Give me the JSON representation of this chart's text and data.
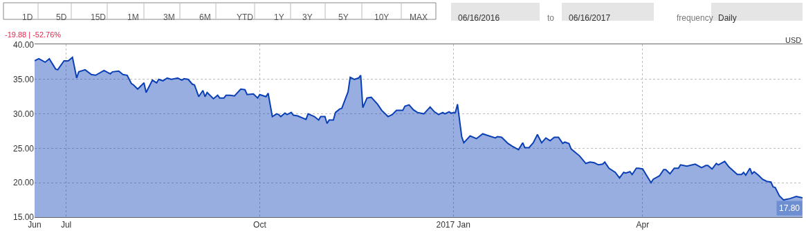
{
  "chart_data": {
    "type": "area",
    "title": "-19.88 | -52.76%",
    "annotations": [
      "1D",
      "5D",
      "15D",
      "1M",
      "3M",
      "6M",
      "YTD",
      "1Y",
      "3Y",
      "5Y",
      "10Y",
      "MAX",
      "06/16/2016",
      "to",
      "06/16/2017",
      "frequency",
      "Daily",
      "USD",
      {
        "text": "17.80",
        "x": "2017-06-16",
        "y": 17.8
      }
    ],
    "x": [
      "2016-06-16",
      "2016-06-18",
      "2016-06-21",
      "2016-06-23",
      "2016-06-26",
      "2016-06-27",
      "2016-06-30",
      "2016-07-02",
      "2016-07-04",
      "2016-07-06",
      "2016-07-07",
      "2016-07-10",
      "2016-07-13",
      "2016-07-15",
      "2016-07-19",
      "2016-07-22",
      "2016-07-23",
      "2016-07-26",
      "2016-07-28",
      "2016-07-30",
      "2016-08-01",
      "2016-08-02",
      "2016-08-04",
      "2016-08-07",
      "2016-08-08",
      "2016-08-11",
      "2016-08-13",
      "2016-08-14",
      "2016-08-16",
      "2016-08-18",
      "2016-08-20",
      "2016-08-23",
      "2016-08-25",
      "2016-08-26",
      "2016-08-28",
      "2016-08-30",
      "2016-08-31",
      "2016-09-02",
      "2016-09-04",
      "2016-09-05",
      "2016-09-06",
      "2016-09-09",
      "2016-09-11",
      "2016-09-12",
      "2016-09-14",
      "2016-09-15",
      "2016-09-17",
      "2016-09-19",
      "2016-09-22",
      "2016-09-24",
      "2016-09-25",
      "2016-09-28",
      "2016-09-30",
      "2016-10-01",
      "2016-10-04",
      "2016-10-05",
      "2016-10-07",
      "2016-10-09",
      "2016-10-10",
      "2016-10-11",
      "2016-10-13",
      "2016-10-14",
      "2016-10-16",
      "2016-10-17",
      "2016-10-19",
      "2016-10-23",
      "2016-10-24",
      "2016-10-27",
      "2016-10-29",
      "2016-10-30",
      "2016-11-01",
      "2016-11-02",
      "2016-11-03",
      "2016-11-05",
      "2016-11-06",
      "2016-11-08",
      "2016-11-09",
      "2016-11-12",
      "2016-11-13",
      "2016-11-15",
      "2016-11-17",
      "2016-11-18",
      "2016-11-19",
      "2016-11-21",
      "2016-11-23",
      "2016-11-26",
      "2016-11-28",
      "2016-12-01",
      "2016-12-03",
      "2016-12-05",
      "2016-12-08",
      "2016-12-09",
      "2016-12-11",
      "2016-12-13",
      "2016-12-15",
      "2016-12-18",
      "2016-12-21",
      "2016-12-23",
      "2016-12-25",
      "2016-12-27",
      "2016-12-28",
      "2016-12-30",
      "2016-12-31",
      "2017-01-02",
      "2017-01-03",
      "2017-01-05",
      "2017-01-06",
      "2017-01-09",
      "2017-01-12",
      "2017-01-15",
      "2017-01-17",
      "2017-01-21",
      "2017-01-22",
      "2017-01-24",
      "2017-01-27",
      "2017-01-29",
      "2017-02-01",
      "2017-02-03",
      "2017-02-04",
      "2017-02-06",
      "2017-02-08",
      "2017-02-10",
      "2017-02-12",
      "2017-02-14",
      "2017-02-16",
      "2017-02-18",
      "2017-02-20",
      "2017-02-22",
      "2017-02-23",
      "2017-02-25",
      "2017-02-26",
      "2017-03-02",
      "2017-03-05",
      "2017-03-07",
      "2017-03-09",
      "2017-03-11",
      "2017-03-13",
      "2017-03-14",
      "2017-03-16",
      "2017-03-19",
      "2017-03-21",
      "2017-03-23",
      "2017-03-24",
      "2017-03-26",
      "2017-03-27",
      "2017-03-29",
      "2017-03-30",
      "2017-04-01",
      "2017-04-05",
      "2017-04-06",
      "2017-04-09",
      "2017-04-11",
      "2017-04-12",
      "2017-04-14",
      "2017-04-16",
      "2017-04-18",
      "2017-04-19",
      "2017-04-22",
      "2017-04-26",
      "2017-04-29",
      "2017-05-01",
      "2017-05-02",
      "2017-05-04",
      "2017-05-06",
      "2017-05-07",
      "2017-05-10",
      "2017-05-12",
      "2017-05-16",
      "2017-05-18",
      "2017-05-19",
      "2017-05-20",
      "2017-05-22",
      "2017-05-23",
      "2017-05-24",
      "2017-05-26",
      "2017-05-28",
      "2017-05-30",
      "2017-06-01",
      "2017-06-02",
      "2017-06-03",
      "2017-06-05",
      "2017-06-07",
      "2017-06-08",
      "2017-06-10",
      "2017-06-11",
      "2017-06-13",
      "2017-06-16"
    ],
    "series": [
      {
        "color": "#0a3fb5",
        "values": [
          37.7,
          38.0,
          37.5,
          38.0,
          36.5,
          36.4,
          37.7,
          37.7,
          38.2,
          35.2,
          36.1,
          36.4,
          35.7,
          35.6,
          36.3,
          35.8,
          36.1,
          36.2,
          35.7,
          35.6,
          34.4,
          34.2,
          33.6,
          34.5,
          33.1,
          34.9,
          34.5,
          35.0,
          34.8,
          35.2,
          35.0,
          35.2,
          34.9,
          35.1,
          35.0,
          34.3,
          34.2,
          32.5,
          33.4,
          32.5,
          33.1,
          32.2,
          32.7,
          32.3,
          32.3,
          32.7,
          32.7,
          32.6,
          33.6,
          33.5,
          32.8,
          32.9,
          32.3,
          32.8,
          32.5,
          33.0,
          29.6,
          30.0,
          29.9,
          29.6,
          30.1,
          29.9,
          30.2,
          29.8,
          29.7,
          29.2,
          30.0,
          29.6,
          29.1,
          29.6,
          29.6,
          28.6,
          29.1,
          29.1,
          30.2,
          30.7,
          30.8,
          33.2,
          35.3,
          35.0,
          35.2,
          35.6,
          30.9,
          32.3,
          32.4,
          31.4,
          30.5,
          29.6,
          29.9,
          30.5,
          30.5,
          31.1,
          31.3,
          30.6,
          30.2,
          30.0,
          31.0,
          30.3,
          29.9,
          30.2,
          30.0,
          30.3,
          30.1,
          30.2,
          31.4,
          26.7,
          25.8,
          26.8,
          26.4,
          27.1,
          26.9,
          26.5,
          26.7,
          26.6,
          25.7,
          25.3,
          24.8,
          25.8,
          25.1,
          25.1,
          25.8,
          27.0,
          25.8,
          26.5,
          26.1,
          26.6,
          26.6,
          25.7,
          25.9,
          25.7,
          24.9,
          23.9,
          22.8,
          23.0,
          22.9,
          22.6,
          22.7,
          23.0,
          22.1,
          21.5,
          20.7,
          21.5,
          21.4,
          21.6,
          21.2,
          22.1,
          22.1,
          22.0,
          20.0,
          20.5,
          21.0,
          21.9,
          21.9,
          21.3,
          22.1,
          22.1,
          22.6,
          22.4,
          22.7,
          22.2,
          22.5,
          22.5,
          22.0,
          22.8,
          22.6,
          23.1,
          22.3,
          21.2,
          21.2,
          21.5,
          21.1,
          22.1,
          21.3,
          21.6,
          21.1,
          20.5,
          20.2,
          20.1,
          19.4,
          19.3,
          18.1,
          17.5,
          null,
          17.7,
          17.8,
          18.0,
          17.8
        ]
      }
    ],
    "xlim": [
      "2016-06-16",
      "2017-06-16"
    ],
    "xticks": [
      {
        "value": "2016-06-16",
        "label": "Jun"
      },
      {
        "value": "2016-07-01",
        "label": "Jul"
      },
      {
        "value": "2016-10-01",
        "label": "Oct"
      },
      {
        "value": "2017-01-01",
        "label": "2017 Jan"
      },
      {
        "value": "2017-04-01",
        "label": "Apr"
      }
    ],
    "ylim": [
      15,
      40.1
    ],
    "yticks": [
      {
        "value": 15,
        "label": "15.00"
      },
      {
        "value": 20,
        "label": "20.00"
      },
      {
        "value": 25,
        "label": "25.00"
      },
      {
        "value": 30,
        "label": "30.00"
      },
      {
        "value": 35,
        "label": "35.00"
      },
      {
        "value": 40,
        "label": "40.00"
      }
    ],
    "grid": true
  }
}
